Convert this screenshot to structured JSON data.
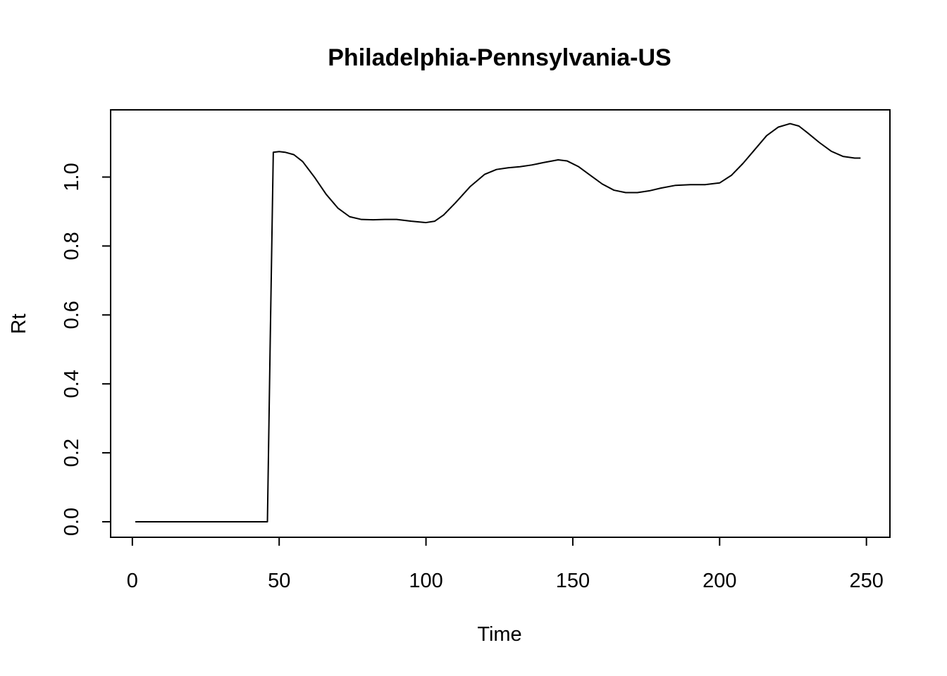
{
  "chart_data": {
    "type": "line",
    "title": "Philadelphia-Pennsylvania-US",
    "xlabel": "Time",
    "ylabel": "Rt",
    "xlim": [
      -7.4,
      258
    ],
    "ylim": [
      -0.045,
      1.195
    ],
    "xticks": [
      0,
      50,
      100,
      150,
      200,
      250
    ],
    "xtick_labels": [
      "0",
      "50",
      "100",
      "150",
      "200",
      "250"
    ],
    "yticks": [
      0.0,
      0.2,
      0.4,
      0.6,
      0.8,
      1.0
    ],
    "ytick_labels": [
      "0.0",
      "0.2",
      "0.4",
      "0.6",
      "0.8",
      "1.0"
    ],
    "grid": false,
    "series": [
      {
        "color": "#000000",
        "x": [
          1,
          5,
          10,
          15,
          20,
          25,
          30,
          35,
          40,
          45,
          46,
          47,
          48,
          50,
          52,
          55,
          58,
          62,
          66,
          70,
          74,
          78,
          82,
          86,
          90,
          95,
          100,
          103,
          106,
          110,
          115,
          120,
          124,
          128,
          132,
          136,
          140,
          145,
          148,
          152,
          156,
          160,
          164,
          168,
          172,
          176,
          180,
          185,
          190,
          195,
          200,
          204,
          208,
          212,
          216,
          220,
          224,
          227,
          230,
          234,
          238,
          242,
          246,
          248
        ],
        "y": [
          0.0,
          0.0,
          0.0,
          0.0,
          0.0,
          0.0,
          0.0,
          0.0,
          0.0,
          0.0,
          0.0,
          0.55,
          1.072,
          1.074,
          1.072,
          1.065,
          1.045,
          1.0,
          0.95,
          0.91,
          0.885,
          0.877,
          0.876,
          0.877,
          0.877,
          0.872,
          0.868,
          0.872,
          0.89,
          0.925,
          0.972,
          1.008,
          1.022,
          1.027,
          1.03,
          1.035,
          1.042,
          1.05,
          1.047,
          1.03,
          1.005,
          0.98,
          0.962,
          0.955,
          0.955,
          0.96,
          0.968,
          0.976,
          0.978,
          0.978,
          0.983,
          1.005,
          1.04,
          1.08,
          1.12,
          1.145,
          1.155,
          1.148,
          1.128,
          1.1,
          1.075,
          1.06,
          1.055,
          1.055
        ]
      }
    ]
  }
}
